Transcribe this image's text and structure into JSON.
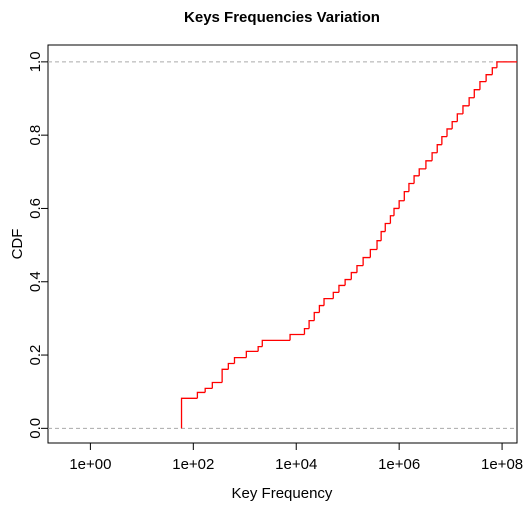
{
  "chart_data": {
    "type": "step",
    "title": "Keys Frequencies Variation",
    "xlabel": "Key Frequency",
    "ylabel": "CDF",
    "log_x": true,
    "xlim": [
      0.15,
      195000000
    ],
    "ylim": [
      -0.04,
      1.046
    ],
    "xticks": [
      {
        "value": 1,
        "label": "1e+00"
      },
      {
        "value": 100,
        "label": "1e+02"
      },
      {
        "value": 10000,
        "label": "1e+04"
      },
      {
        "value": 1000000,
        "label": "1e+06"
      },
      {
        "value": 100000000,
        "label": "1e+08"
      }
    ],
    "yticks": [
      {
        "value": 0,
        "label": "0.0"
      },
      0.2,
      0.4,
      0.6,
      0.8,
      {
        "value": 1,
        "label": "1.0"
      }
    ],
    "hlines": [
      0,
      1
    ],
    "series": [
      {
        "color": "#ff0000",
        "x": [
          59,
          120,
          170,
          234,
          363,
          479,
          631,
          1072,
          1820,
          2188,
          7586,
          14450,
          17780,
          22390,
          28180,
          34670,
          52480,
          67610,
          89130,
          117500,
          151400,
          199500,
          275400,
          371500,
          446700,
          537000,
          676100,
          794300,
          1000000,
          1259000,
          1549000,
          1950000,
          2455000,
          3311000,
          4365000,
          5495000,
          6761000,
          8511000,
          10720000,
          13490000,
          17380000,
          22910000,
          28840000,
          37150000,
          48980000,
          64570000,
          79430000
        ],
        "values": [
          0.082,
          0.098,
          0.109,
          0.125,
          0.161,
          0.177,
          0.193,
          0.21,
          0.223,
          0.24,
          0.256,
          0.272,
          0.294,
          0.316,
          0.335,
          0.354,
          0.371,
          0.39,
          0.406,
          0.425,
          0.444,
          0.466,
          0.488,
          0.512,
          0.537,
          0.559,
          0.58,
          0.6,
          0.621,
          0.646,
          0.668,
          0.689,
          0.708,
          0.73,
          0.752,
          0.774,
          0.796,
          0.817,
          0.837,
          0.858,
          0.88,
          0.902,
          0.924,
          0.946,
          0.965,
          0.984,
          1.0
        ]
      }
    ]
  }
}
